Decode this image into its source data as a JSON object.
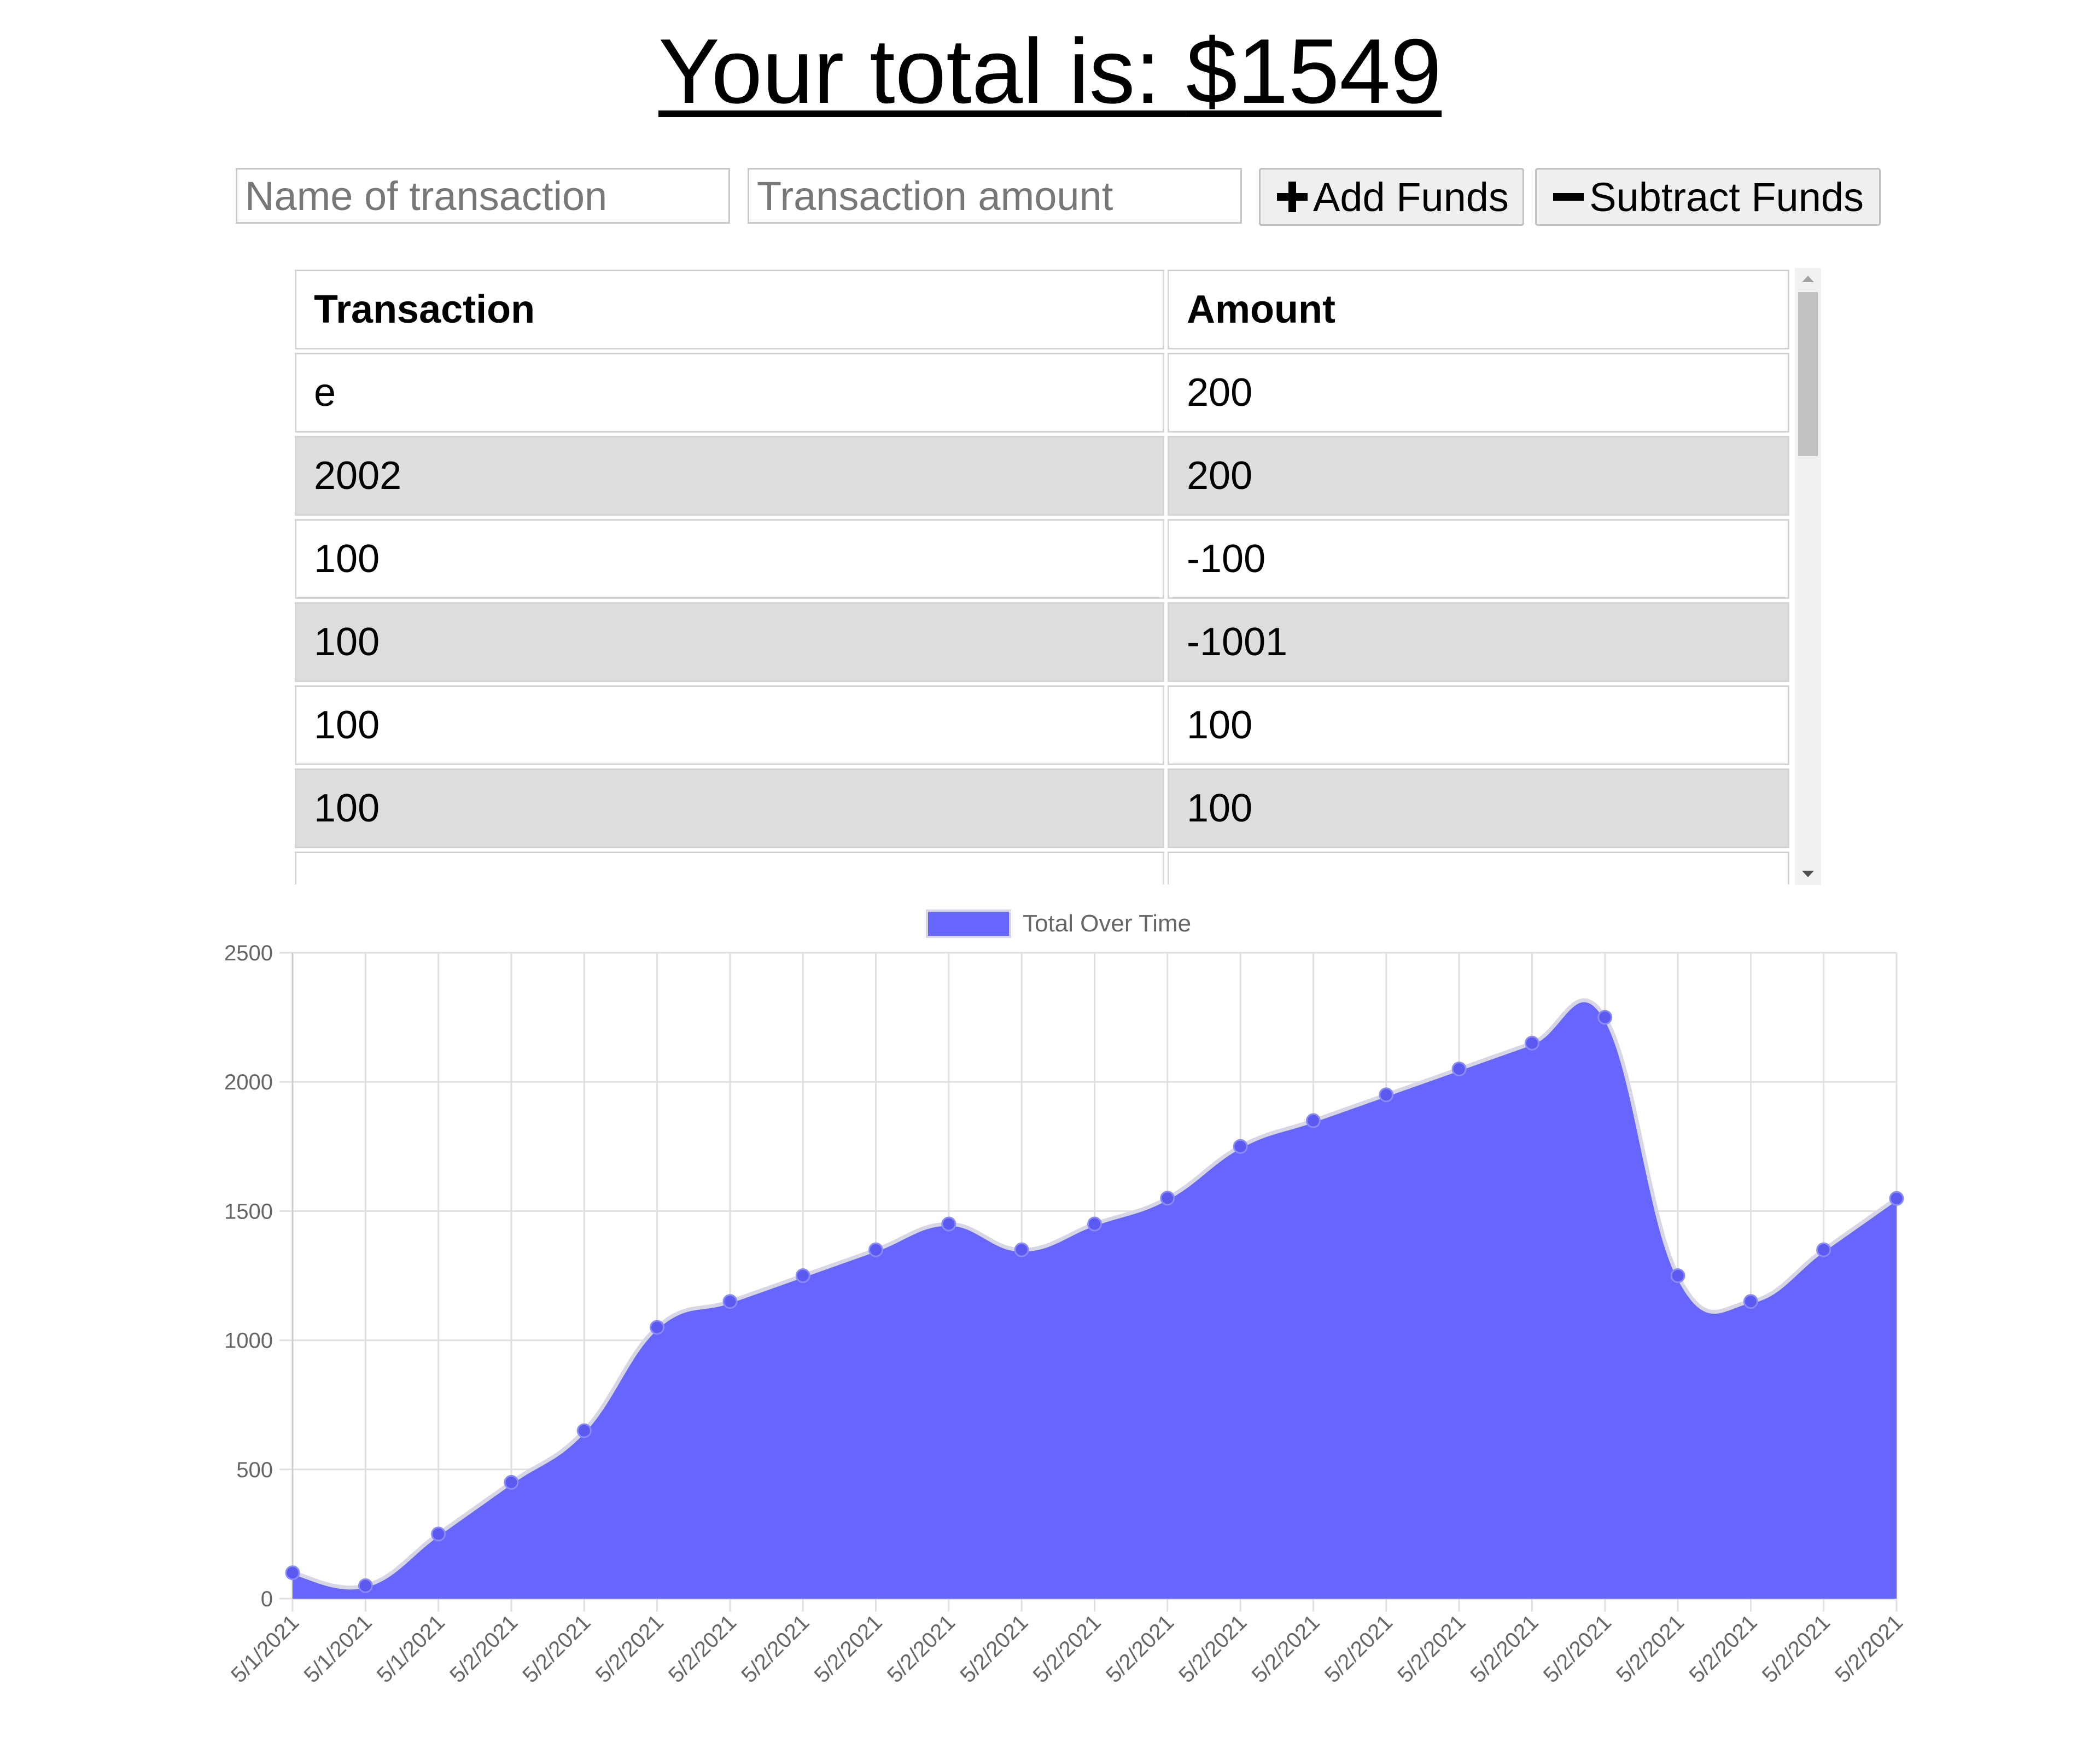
{
  "header": {
    "title_prefix": "Your total is: ",
    "title_amount": "$1549"
  },
  "form": {
    "name_placeholder": "Name of transaction",
    "amount_placeholder": "Transaction amount",
    "add_label": "Add Funds",
    "subtract_label": "Subtract Funds",
    "add_icon": "plus-icon",
    "subtract_icon": "minus-icon"
  },
  "table": {
    "headers": [
      "Transaction",
      "Amount"
    ],
    "rows": [
      [
        "e",
        "200"
      ],
      [
        "2002",
        "200"
      ],
      [
        "100",
        "-100"
      ],
      [
        "100",
        "-1001"
      ],
      [
        "100",
        "100"
      ],
      [
        "100",
        "100"
      ],
      [
        "",
        ""
      ]
    ]
  },
  "colors": {
    "fill": "#6666ff",
    "stroke": "#d6d6e6",
    "point": "#5a5af0",
    "grid": "#e0e0e0",
    "axis_text": "#666666"
  },
  "chart_data": {
    "type": "area",
    "legend": "Total Over Time",
    "legend_position": "top-center",
    "grid": true,
    "ylim": [
      0,
      2500
    ],
    "yticks": [
      0,
      500,
      1000,
      1500,
      2000,
      2500
    ],
    "x": [
      "5/1/2021",
      "5/1/2021",
      "5/1/2021",
      "5/2/2021",
      "5/2/2021",
      "5/2/2021",
      "5/2/2021",
      "5/2/2021",
      "5/2/2021",
      "5/2/2021",
      "5/2/2021",
      "5/2/2021",
      "5/2/2021",
      "5/2/2021",
      "5/2/2021",
      "5/2/2021",
      "5/2/2021",
      "5/2/2021",
      "5/2/2021",
      "5/2/2021",
      "5/2/2021",
      "5/2/2021",
      "5/2/2021"
    ],
    "series": [
      {
        "name": "Total Over Time",
        "values": [
          100,
          50,
          250,
          450,
          650,
          1050,
          1150,
          1250,
          1350,
          1450,
          1350,
          1450,
          1550,
          1750,
          1850,
          1950,
          2050,
          2150,
          2250,
          1250,
          1150,
          1350,
          1549
        ]
      }
    ]
  }
}
